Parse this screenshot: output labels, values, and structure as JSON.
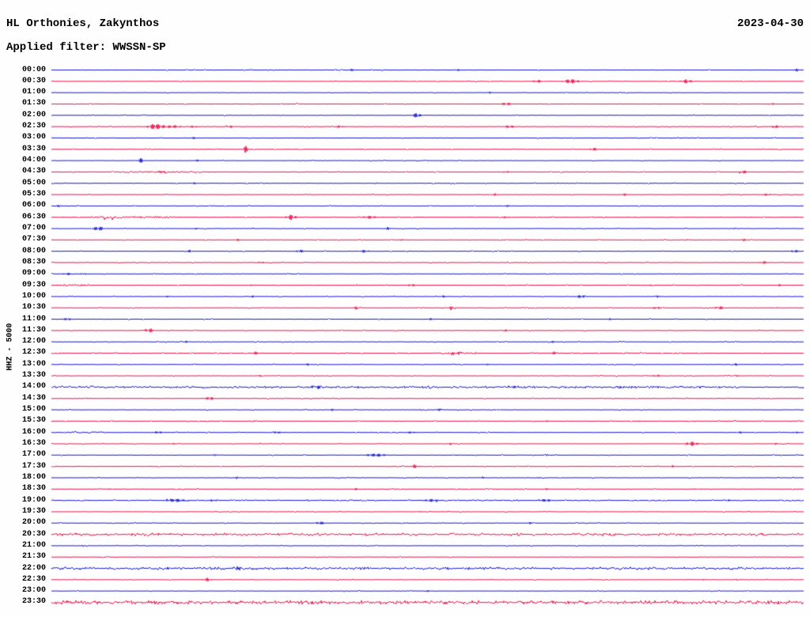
{
  "header": {
    "station_title": "HL Orthonies, Zakynthos",
    "filter_label": "Applied filter: WWSSN-SP",
    "report_date": "2023-04-30"
  },
  "axis": {
    "left_label": "HHZ - 5000"
  },
  "colors": {
    "trace_even": "#1414d0",
    "trace_odd": "#e8114a",
    "text": "#000000",
    "background": "#ffffff"
  },
  "chart_data": {
    "type": "line",
    "title": "HL Orthonies, Zakynthos",
    "subtitle": "Applied filter: WWSSN-SP",
    "date": "2023-04-30",
    "channel_scale": "HHZ - 5000",
    "legend_position": "none",
    "grid": false,
    "row_minutes": 30,
    "rows": [
      {
        "t": "00:00",
        "e": [
          [
            445,
            1.5,
            8
          ],
          [
            578,
            1.5,
            6
          ],
          [
            1008,
            2,
            6
          ]
        ]
      },
      {
        "t": "00:30",
        "e": [
          [
            680,
            2,
            10
          ],
          [
            722,
            3,
            16
          ],
          [
            868,
            2.5,
            12
          ]
        ]
      },
      {
        "t": "01:00",
        "e": [
          [
            618,
            1.5,
            6
          ]
        ]
      },
      {
        "t": "01:30",
        "e": [
          [
            640,
            2,
            12
          ],
          [
            975,
            1.5,
            6
          ]
        ]
      },
      {
        "t": "02:00",
        "e": [
          [
            527,
            3.5,
            8
          ]
        ]
      },
      {
        "t": "02:30",
        "e": [
          [
            196,
            4,
            14
          ],
          [
            218,
            2,
            20
          ],
          [
            245,
            1.5,
            10
          ],
          [
            292,
            1.5,
            8
          ],
          [
            430,
            2,
            8
          ],
          [
            645,
            2,
            12
          ],
          [
            980,
            2,
            8
          ]
        ]
      },
      {
        "t": "03:00",
        "e": [
          [
            245,
            1.5,
            6
          ]
        ]
      },
      {
        "t": "03:30",
        "e": [
          [
            310,
            5,
            5
          ],
          [
            750,
            2.5,
            7
          ]
        ]
      },
      {
        "t": "04:00",
        "e": [
          [
            178,
            3,
            8
          ],
          [
            250,
            1.5,
            6
          ]
        ]
      },
      {
        "t": "04:30",
        "s": [
          [
            150,
            260,
            0.8
          ]
        ],
        "e": [
          [
            205,
            2,
            10
          ],
          [
            640,
            1.5,
            8
          ],
          [
            940,
            2,
            8
          ]
        ]
      },
      {
        "t": "05:00",
        "e": [
          [
            245,
            1.5,
            6
          ]
        ]
      },
      {
        "t": "05:30",
        "e": [
          [
            625,
            1.5,
            8
          ],
          [
            790,
            1.5,
            6
          ],
          [
            970,
            1.8,
            8
          ]
        ]
      },
      {
        "t": "06:00",
        "e": [
          [
            75,
            1.5,
            6
          ],
          [
            640,
            1.5,
            6
          ]
        ]
      },
      {
        "t": "06:30",
        "s": [
          [
            115,
            215,
            1.2
          ]
        ],
        "e": [
          [
            368,
            3.5,
            10
          ],
          [
            468,
            2,
            14
          ],
          [
            640,
            1.5,
            8
          ]
        ]
      },
      {
        "t": "07:00",
        "e": [
          [
            125,
            3,
            12
          ],
          [
            247,
            1.5,
            5
          ],
          [
            490,
            1.8,
            8
          ]
        ]
      },
      {
        "t": "07:30",
        "e": [
          [
            300,
            1.5,
            6
          ],
          [
            510,
            1.5,
            6
          ],
          [
            940,
            1.5,
            6
          ]
        ]
      },
      {
        "t": "08:00",
        "e": [
          [
            240,
            1.8,
            6
          ],
          [
            380,
            1.8,
            10
          ],
          [
            460,
            1.8,
            10
          ],
          [
            1005,
            2,
            8
          ]
        ]
      },
      {
        "t": "08:30",
        "e": [
          [
            330,
            1.8,
            6
          ],
          [
            965,
            1.8,
            8
          ]
        ]
      },
      {
        "t": "09:00",
        "e": [
          [
            85,
            1.8,
            8
          ],
          [
            105,
            1.5,
            6
          ]
        ]
      },
      {
        "t": "09:30",
        "s": [
          [
            80,
            112,
            1.0
          ]
        ],
        "e": [
          [
            320,
            1.5,
            6
          ],
          [
            520,
            1.8,
            8
          ],
          [
            825,
            1.5,
            6
          ],
          [
            985,
            1.5,
            6
          ]
        ]
      },
      {
        "t": "10:00",
        "e": [
          [
            210,
            1.5,
            6
          ],
          [
            320,
            1.5,
            6
          ],
          [
            560,
            1.5,
            8
          ],
          [
            735,
            2.2,
            10
          ],
          [
            830,
            1.5,
            6
          ]
        ]
      },
      {
        "t": "10:30",
        "e": [
          [
            450,
            1.5,
            6
          ],
          [
            570,
            1.8,
            10
          ],
          [
            830,
            1.8,
            8
          ],
          [
            910,
            2.2,
            10
          ],
          [
            980,
            1.5,
            6
          ]
        ]
      },
      {
        "t": "11:00",
        "e": [
          [
            85,
            1.8,
            8
          ],
          [
            545,
            1.5,
            6
          ],
          [
            770,
            1.5,
            6
          ]
        ]
      },
      {
        "t": "11:30",
        "e": [
          [
            190,
            2.5,
            10
          ],
          [
            640,
            1.5,
            6
          ]
        ]
      },
      {
        "t": "12:00",
        "e": [
          [
            235,
            1.5,
            6
          ],
          [
            700,
            1.5,
            6
          ]
        ]
      },
      {
        "t": "12:30",
        "b": 0.05,
        "s": [
          [
            550,
            600,
            0.9
          ]
        ],
        "e": [
          [
            323,
            2,
            8
          ],
          [
            575,
            2.2,
            12
          ],
          [
            700,
            1.8,
            6
          ]
        ]
      },
      {
        "t": "13:00",
        "e": [
          [
            388,
            1.5,
            6
          ],
          [
            615,
            1.5,
            6
          ],
          [
            930,
            1.5,
            6
          ]
        ]
      },
      {
        "t": "13:30",
        "e": [
          [
            330,
            1.5,
            6
          ],
          [
            830,
            1.8,
            8
          ],
          [
            930,
            1.5,
            6
          ]
        ]
      },
      {
        "t": "14:00",
        "n": 0.35,
        "b": 0.25,
        "e": [
          [
            400,
            1.6,
            10
          ],
          [
            650,
            1.6,
            10
          ]
        ]
      },
      {
        "t": "14:30",
        "e": [
          [
            265,
            2.5,
            8
          ]
        ]
      },
      {
        "t": "15:00",
        "e": [
          [
            420,
            1.5,
            6
          ],
          [
            555,
            1.5,
            5
          ],
          [
            630,
            1.5,
            5
          ]
        ]
      },
      {
        "t": "15:30",
        "e": [
          [
            320,
            1.5,
            5
          ],
          [
            690,
            1.5,
            5
          ],
          [
            810,
            1.5,
            5
          ]
        ]
      },
      {
        "t": "16:00",
        "s": [
          [
            80,
            135,
            0.9
          ]
        ],
        "e": [
          [
            200,
            1.8,
            8
          ],
          [
            350,
            1.8,
            8
          ],
          [
            520,
            1.8,
            8
          ],
          [
            935,
            1.5,
            6
          ],
          [
            1005,
            1.5,
            8
          ]
        ]
      },
      {
        "t": "16:30",
        "e": [
          [
            218,
            1.8,
            5
          ],
          [
            570,
            1.5,
            5
          ],
          [
            875,
            3,
            12
          ],
          [
            980,
            1.5,
            5
          ]
        ]
      },
      {
        "t": "17:00",
        "e": [
          [
            270,
            1.5,
            5
          ],
          [
            475,
            2.2,
            22
          ],
          [
            575,
            1.5,
            5
          ],
          [
            690,
            1.5,
            5
          ]
        ]
      },
      {
        "t": "17:30",
        "e": [
          [
            525,
            2.5,
            8
          ],
          [
            850,
            1.5,
            5
          ]
        ]
      },
      {
        "t": "18:00",
        "e": [
          [
            300,
            1.5,
            5
          ],
          [
            610,
            1.5,
            5
          ],
          [
            680,
            1.5,
            5
          ]
        ]
      },
      {
        "t": "18:30",
        "e": [
          [
            140,
            1.5,
            5
          ],
          [
            450,
            1.5,
            5
          ],
          [
            690,
            1.5,
            5
          ],
          [
            880,
            1.5,
            5
          ]
        ]
      },
      {
        "t": "19:00",
        "b": 0.08,
        "e": [
          [
            222,
            2.2,
            20
          ],
          [
            270,
            1.8,
            10
          ],
          [
            545,
            2,
            14
          ],
          [
            690,
            2,
            12
          ],
          [
            920,
            1.5,
            6
          ]
        ]
      },
      {
        "t": "19:30",
        "e": [
          [
            530,
            1.5,
            5
          ]
        ]
      },
      {
        "t": "20:00",
        "e": [
          [
            405,
            2,
            10
          ],
          [
            670,
            1.5,
            5
          ]
        ]
      },
      {
        "t": "20:30",
        "n": 0.55,
        "b": 0.22,
        "e": []
      },
      {
        "t": "21:00",
        "e": []
      },
      {
        "t": "21:30",
        "e": [
          [
            560,
            1.2,
            4
          ]
        ]
      },
      {
        "t": "22:00",
        "n": 0.5,
        "b": 0.25,
        "e": [
          [
            300,
            1.8,
            6
          ]
        ]
      },
      {
        "t": "22:30",
        "e": [
          [
            262,
            2.2,
            10
          ],
          [
            323,
            1.5,
            4
          ],
          [
            890,
            1.2,
            4
          ]
        ]
      },
      {
        "t": "23:00",
        "e": [
          [
            540,
            1.5,
            6
          ]
        ]
      },
      {
        "t": "23:30",
        "n": 0.8,
        "b": 0.3,
        "e": []
      }
    ]
  }
}
